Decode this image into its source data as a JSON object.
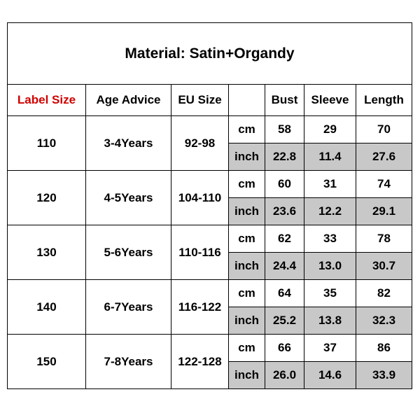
{
  "title": "Material: Satin+Organdy",
  "headers": {
    "label_size": "Label Size",
    "age_advice": "Age Advice",
    "eu_size": "EU Size",
    "unit": "",
    "bust": "Bust",
    "sleeve": "Sleeve",
    "length": "Length"
  },
  "colors": {
    "label_header": "#d10000",
    "inch_row_bg": "#c8c8c8"
  },
  "rows": [
    {
      "label": "110",
      "age": "3-4Years",
      "eu": "92-98",
      "cm": {
        "unit": "cm",
        "bust": "58",
        "sleeve": "29",
        "length": "70"
      },
      "inch": {
        "unit": "inch",
        "bust": "22.8",
        "sleeve": "11.4",
        "length": "27.6"
      }
    },
    {
      "label": "120",
      "age": "4-5Years",
      "eu": "104-110",
      "cm": {
        "unit": "cm",
        "bust": "60",
        "sleeve": "31",
        "length": "74"
      },
      "inch": {
        "unit": "inch",
        "bust": "23.6",
        "sleeve": "12.2",
        "length": "29.1"
      }
    },
    {
      "label": "130",
      "age": "5-6Years",
      "eu": "110-116",
      "cm": {
        "unit": "cm",
        "bust": "62",
        "sleeve": "33",
        "length": "78"
      },
      "inch": {
        "unit": "inch",
        "bust": "24.4",
        "sleeve": "13.0",
        "length": "30.7"
      }
    },
    {
      "label": "140",
      "age": "6-7Years",
      "eu": "116-122",
      "cm": {
        "unit": "cm",
        "bust": "64",
        "sleeve": "35",
        "length": "82"
      },
      "inch": {
        "unit": "inch",
        "bust": "25.2",
        "sleeve": "13.8",
        "length": "32.3"
      }
    },
    {
      "label": "150",
      "age": "7-8Years",
      "eu": "122-128",
      "cm": {
        "unit": "cm",
        "bust": "66",
        "sleeve": "37",
        "length": "86"
      },
      "inch": {
        "unit": "inch",
        "bust": "26.0",
        "sleeve": "14.6",
        "length": "33.9"
      }
    }
  ]
}
